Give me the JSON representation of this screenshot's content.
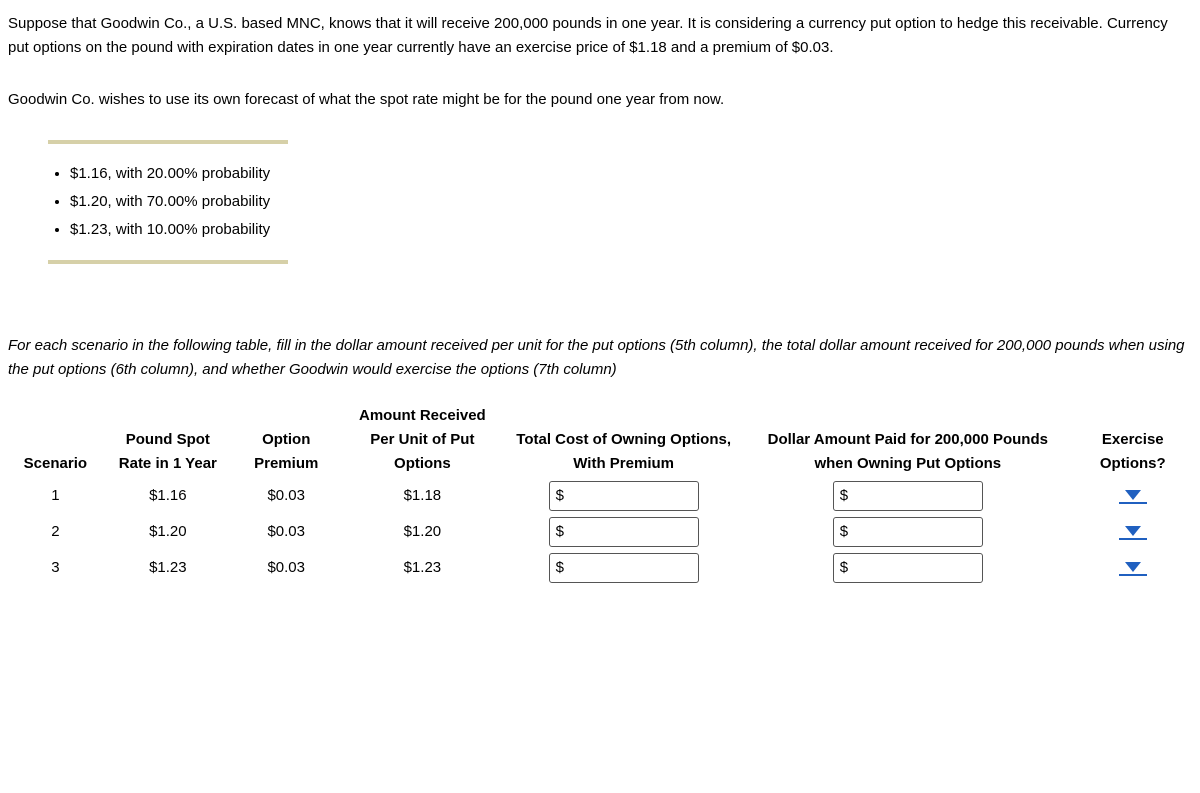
{
  "intro": {
    "p1": "Suppose that Goodwin Co., a U.S. based MNC, knows that it will receive 200,000 pounds in one year. It is considering a currency put option to hedge this receivable. Currency put options on the pound with expiration dates in one year currently have an exercise price of $1.18 and a premium of $0.03.",
    "p2": "Goodwin Co. wishes to use its own forecast of what the spot rate might be for the pound one year from now."
  },
  "forecasts": [
    "$1.16, with 20.00% probability",
    "$1.20, with 70.00% probability",
    "$1.23, with 10.00% probability"
  ],
  "instruction": "For each scenario in the following table, fill in the dollar amount received per unit for the put options (5th column), the total dollar amount received for 200,000 pounds when using the put options (6th column), and whether Goodwin would exercise the options (7th column)",
  "table": {
    "headers": {
      "scenario": "Scenario",
      "spot": "Pound Spot Rate in 1 Year",
      "premium": "Option Premium",
      "amount": "Amount Received Per Unit of Put Options",
      "totalcost": "Total Cost of Owning Options, With Premium",
      "dollar": "Dollar Amount Paid for 200,000 Pounds when Owning Put Options",
      "exercise": "Exercise Options?"
    },
    "rows": [
      {
        "scenario": "1",
        "spot": "$1.16",
        "premium": "$0.03",
        "amount": "$1.18",
        "totalcost": "",
        "dollar": ""
      },
      {
        "scenario": "2",
        "spot": "$1.20",
        "premium": "$0.03",
        "amount": "$1.20",
        "totalcost": "",
        "dollar": ""
      },
      {
        "scenario": "3",
        "spot": "$1.23",
        "premium": "$0.03",
        "amount": "$1.23",
        "totalcost": "",
        "dollar": ""
      }
    ],
    "currency_prefix": "$"
  }
}
